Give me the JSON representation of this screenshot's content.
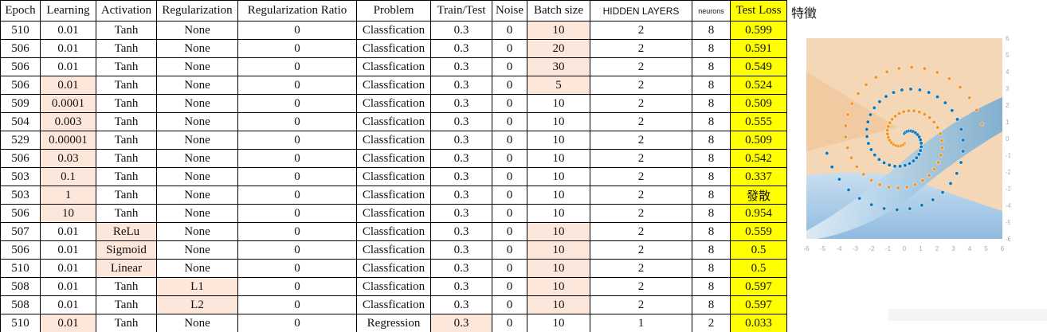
{
  "headers": [
    "Epoch",
    "Learning",
    "Activation",
    "Regularization",
    "Regularization Ratio",
    "Problem",
    "Train/Test",
    "Noise",
    "Batch size",
    "HIDDEN LAYERS",
    "neurons",
    "Test Loss"
  ],
  "rows": [
    {
      "cells": [
        "510",
        "0.01",
        "Tanh",
        "None",
        "0",
        "Classfication",
        "0.3",
        "0",
        "10",
        "2",
        "8",
        "0.599"
      ],
      "hl": [
        8
      ]
    },
    {
      "cells": [
        "506",
        "0.01",
        "Tanh",
        "None",
        "0",
        "Classfication",
        "0.3",
        "0",
        "20",
        "2",
        "8",
        "0.591"
      ],
      "hl": [
        8
      ]
    },
    {
      "cells": [
        "506",
        "0.01",
        "Tanh",
        "None",
        "0",
        "Classfication",
        "0.3",
        "0",
        "30",
        "2",
        "8",
        "0.549"
      ],
      "hl": [
        8
      ]
    },
    {
      "cells": [
        "506",
        "0.01",
        "Tanh",
        "None",
        "0",
        "Classfication",
        "0.3",
        "0",
        "5",
        "2",
        "8",
        "0.524"
      ],
      "hl": [
        1,
        8
      ]
    },
    {
      "cells": [
        "509",
        "0.0001",
        "Tanh",
        "None",
        "0",
        "Classfication",
        "0.3",
        "0",
        "10",
        "2",
        "8",
        "0.509"
      ],
      "hl": [
        1
      ]
    },
    {
      "cells": [
        "504",
        "0.003",
        "Tanh",
        "None",
        "0",
        "Classfication",
        "0.3",
        "0",
        "10",
        "2",
        "8",
        "0.555"
      ],
      "hl": [
        1
      ]
    },
    {
      "cells": [
        "529",
        "0.00001",
        "Tanh",
        "None",
        "0",
        "Classfication",
        "0.3",
        "0",
        "10",
        "2",
        "8",
        "0.509"
      ],
      "hl": [
        1
      ]
    },
    {
      "cells": [
        "506",
        "0.03",
        "Tanh",
        "None",
        "0",
        "Classfication",
        "0.3",
        "0",
        "10",
        "2",
        "8",
        "0.542"
      ],
      "hl": [
        1
      ]
    },
    {
      "cells": [
        "503",
        "0.1",
        "Tanh",
        "None",
        "0",
        "Classfication",
        "0.3",
        "0",
        "10",
        "2",
        "8",
        "0.337"
      ],
      "hl": [
        1
      ]
    },
    {
      "cells": [
        "503",
        "1",
        "Tanh",
        "None",
        "0",
        "Classfication",
        "0.3",
        "0",
        "10",
        "2",
        "8",
        "發散"
      ],
      "hl": [
        1
      ]
    },
    {
      "cells": [
        "506",
        "10",
        "Tanh",
        "None",
        "0",
        "Classfication",
        "0.3",
        "0",
        "10",
        "2",
        "8",
        "0.954"
      ],
      "hl": [
        1
      ]
    },
    {
      "cells": [
        "507",
        "0.01",
        "ReLu",
        "None",
        "0",
        "Classfication",
        "0.3",
        "0",
        "10",
        "2",
        "8",
        "0.559"
      ],
      "hl": [
        2,
        8
      ]
    },
    {
      "cells": [
        "506",
        "0.01",
        "Sigmoid",
        "None",
        "0",
        "Classfication",
        "0.3",
        "0",
        "10",
        "2",
        "8",
        "0.5"
      ],
      "hl": [
        2,
        8
      ]
    },
    {
      "cells": [
        "510",
        "0.01",
        "Linear",
        "None",
        "0",
        "Classfication",
        "0.3",
        "0",
        "10",
        "2",
        "8",
        "0.5"
      ],
      "hl": [
        2,
        8
      ]
    },
    {
      "cells": [
        "508",
        "0.01",
        "Tanh",
        "L1",
        "0",
        "Classfication",
        "0.3",
        "0",
        "10",
        "2",
        "8",
        "0.597"
      ],
      "hl": [
        3,
        8
      ]
    },
    {
      "cells": [
        "508",
        "0.01",
        "Tanh",
        "L2",
        "0",
        "Classfication",
        "0.3",
        "0",
        "10",
        "2",
        "8",
        "0.597"
      ],
      "hl": [
        3,
        8
      ]
    }
  ],
  "partial_row": {
    "cells": [
      "510",
      "0.01",
      "Tanh",
      "None",
      "0",
      "Regression",
      "0.3",
      "0",
      "10",
      "1",
      "2",
      "0.033"
    ],
    "hl": [
      1,
      6
    ]
  },
  "feature_label": "特徵",
  "plot": {
    "xticks": [
      "-6",
      "-5",
      "-4",
      "-3",
      "-2",
      "-1",
      "0",
      "1",
      "2",
      "3",
      "4",
      "5",
      "6"
    ],
    "yticks": [
      "6",
      "5",
      "4",
      "3",
      "2",
      "1",
      "0",
      "-1",
      "-2",
      "-3",
      "-4",
      "-5",
      "-6"
    ],
    "range": [
      -6,
      6
    ],
    "colors": {
      "orange": "#f59322",
      "blue": "#0877bd",
      "bg_orange": "#f2c79c",
      "bg_blue": "#9cc4e0"
    }
  }
}
